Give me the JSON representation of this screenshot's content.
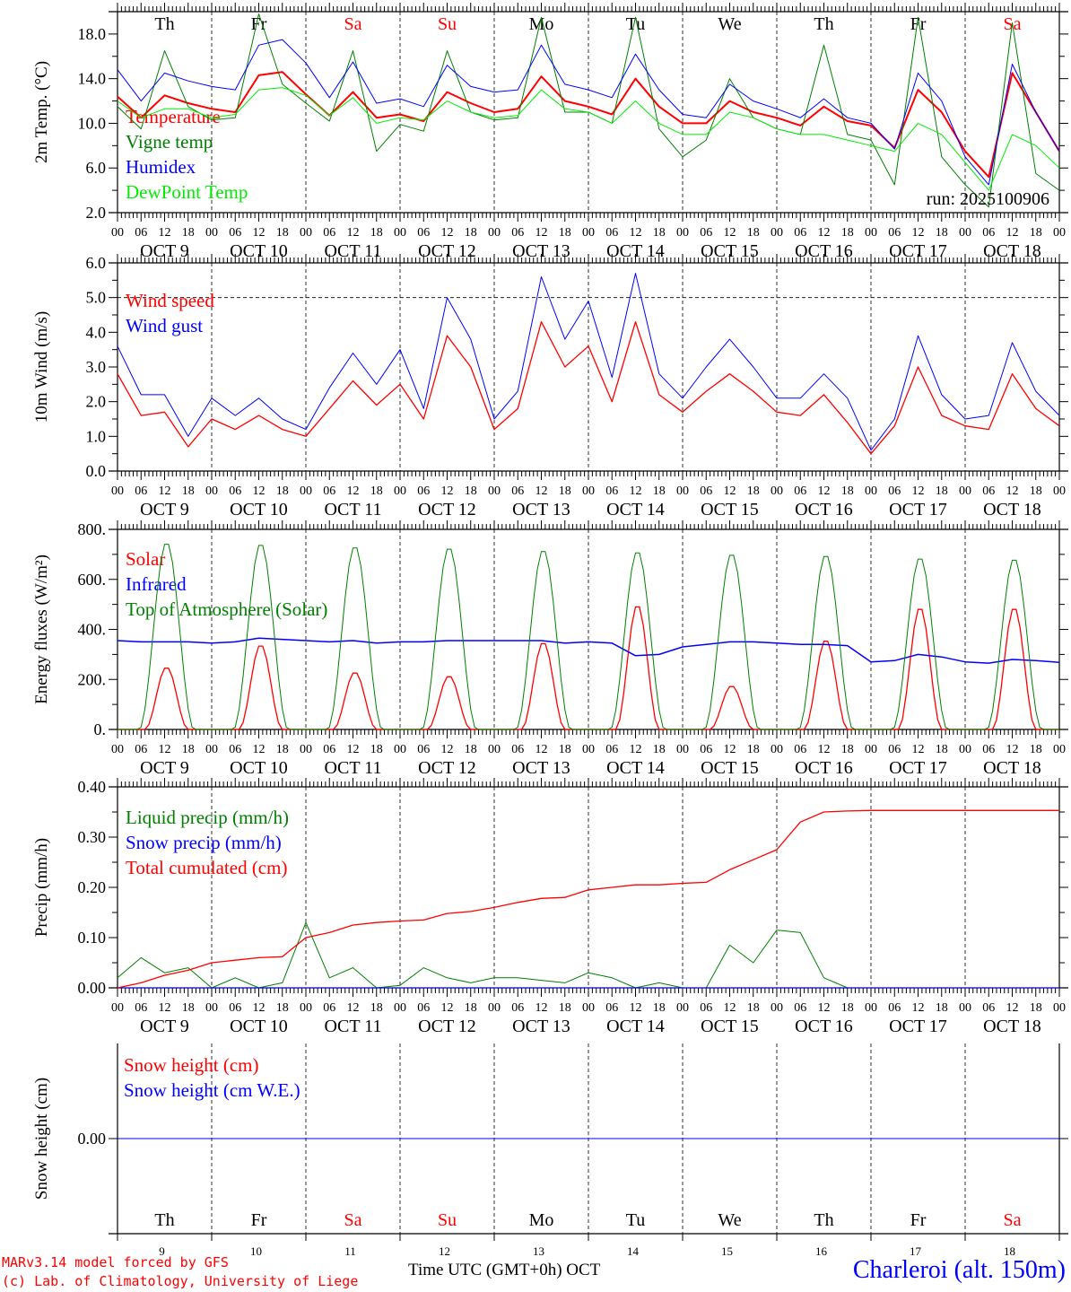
{
  "chart_data": [
    {
      "type": "line",
      "id": "temperature",
      "ylabel": "2m Temp. (°C)",
      "ylim": [
        2,
        20
      ],
      "yticks": [
        2,
        6,
        10,
        14,
        18
      ],
      "ytick_labels": [
        "2.0",
        "6.0",
        "10.0",
        "14.0",
        "18.0"
      ],
      "legend_placement": "left",
      "annotation": "run: 2025100906",
      "series": [
        {
          "name": "Temperature",
          "color": "#ff0000",
          "width": 2,
          "values": [
            12.4,
            10.5,
            12.5,
            11.8,
            11.3,
            11.0,
            14.3,
            14.6,
            12.6,
            10.7,
            12.8,
            10.5,
            10.8,
            10.2,
            12.8,
            11.8,
            11.0,
            11.3,
            14.2,
            12.0,
            11.5,
            10.8,
            14.0,
            11.5,
            10.0,
            10.0,
            12.0,
            11.0,
            10.5,
            9.8,
            11.5,
            10.2,
            9.8,
            7.8,
            13.0,
            11.0,
            7.5,
            5.2,
            14.5,
            11.0,
            7.5
          ]
        },
        {
          "name": "Vigne temp",
          "color": "#008000",
          "width": 1,
          "values": [
            11.5,
            9.5,
            16.5,
            11.5,
            10.3,
            10.5,
            19.8,
            13.5,
            11.8,
            10.2,
            16.5,
            7.5,
            9.9,
            9.3,
            16.5,
            11.0,
            10.3,
            10.5,
            19.5,
            11.0,
            11.0,
            10.0,
            19.5,
            9.5,
            7.0,
            8.5,
            14.0,
            10.5,
            9.5,
            9.0,
            17.0,
            9.0,
            8.5,
            4.5,
            19.5,
            7.0,
            4.5,
            2.5,
            19.0,
            5.5,
            4.0
          ]
        },
        {
          "name": "Humidex",
          "color": "#0000ff",
          "width": 1,
          "values": [
            14.8,
            12.0,
            14.5,
            13.8,
            13.3,
            13.0,
            17.0,
            17.5,
            15.4,
            12.3,
            15.5,
            11.8,
            12.2,
            11.5,
            15.2,
            13.3,
            12.8,
            13.0,
            17.0,
            13.5,
            13.0,
            12.3,
            16.2,
            13.0,
            10.8,
            10.5,
            13.5,
            12.0,
            11.3,
            10.5,
            12.2,
            10.5,
            10.0,
            7.7,
            14.5,
            12.0,
            7.0,
            4.5,
            15.3,
            11.0,
            7.5
          ]
        },
        {
          "name": "DewPoint Temp",
          "color": "#00ee00",
          "width": 1,
          "values": [
            12.0,
            10.5,
            11.3,
            11.3,
            10.5,
            10.8,
            13.0,
            13.2,
            12.5,
            10.7,
            12.3,
            10.0,
            10.5,
            10.3,
            12.0,
            11.0,
            10.5,
            10.7,
            13.0,
            11.3,
            11.0,
            10.0,
            12.0,
            10.0,
            9.0,
            9.0,
            11.0,
            10.5,
            9.5,
            9.0,
            9.0,
            8.5,
            8.0,
            7.5,
            10.0,
            9.0,
            6.5,
            4.0,
            9.0,
            8.0,
            6.0
          ]
        }
      ]
    },
    {
      "type": "line",
      "id": "wind",
      "ylabel": "10m Wind (m/s)",
      "ylim": [
        0,
        6
      ],
      "yticks": [
        0,
        1,
        2,
        3,
        4,
        5,
        6
      ],
      "ytick_labels": [
        "0.0",
        "1.0",
        "2.0",
        "3.0",
        "4.0",
        "5.0",
        "6.0"
      ],
      "reference_line": 5.0,
      "series": [
        {
          "name": "Wind speed",
          "color": "#ff0000",
          "width": 1.3,
          "values": [
            2.8,
            1.6,
            1.7,
            0.7,
            1.5,
            1.2,
            1.6,
            1.2,
            1.0,
            1.8,
            2.6,
            1.9,
            2.5,
            1.5,
            3.9,
            3.0,
            1.2,
            1.8,
            4.3,
            3.0,
            3.6,
            2.0,
            4.3,
            2.2,
            1.7,
            2.3,
            2.8,
            2.3,
            1.7,
            1.6,
            2.2,
            1.4,
            0.5,
            1.3,
            3.0,
            1.6,
            1.3,
            1.2,
            2.8,
            1.8,
            1.3
          ]
        },
        {
          "name": "Wind gust",
          "color": "#0000ff",
          "width": 1,
          "values": [
            3.6,
            2.2,
            2.2,
            1.0,
            2.1,
            1.6,
            2.1,
            1.5,
            1.2,
            2.4,
            3.4,
            2.5,
            3.5,
            1.8,
            5.0,
            3.8,
            1.5,
            2.3,
            5.6,
            3.8,
            4.9,
            2.7,
            5.7,
            2.8,
            2.1,
            3.0,
            3.8,
            3.0,
            2.1,
            2.1,
            2.8,
            2.1,
            0.6,
            1.5,
            3.9,
            2.2,
            1.5,
            1.6,
            3.7,
            2.3,
            1.6
          ]
        }
      ]
    },
    {
      "type": "line",
      "id": "energy",
      "ylabel": "Energy fluxes (W/m²)",
      "ylim": [
        0,
        800
      ],
      "yticks": [
        0,
        200,
        400,
        600,
        800
      ],
      "ytick_labels": [
        "0.",
        "200.",
        "400.",
        "600.",
        "800."
      ],
      "series": [
        {
          "name": "Solar",
          "color": "#ff0000",
          "width": 1.3,
          "daily_peaks": [
            250,
            340,
            230,
            215,
            350,
            500,
            175,
            360,
            490,
            490
          ]
        },
        {
          "name": "Infrared",
          "color": "#0000ff",
          "width": 1.5,
          "values": [
            355,
            350,
            350,
            350,
            345,
            350,
            365,
            360,
            355,
            350,
            355,
            345,
            350,
            350,
            355,
            355,
            355,
            355,
            355,
            345,
            350,
            345,
            295,
            300,
            330,
            340,
            350,
            350,
            345,
            340,
            340,
            335,
            270,
            275,
            300,
            290,
            270,
            265,
            280,
            275,
            268
          ]
        },
        {
          "name": "Top of Atmosphere (Solar)",
          "color": "#008000",
          "width": 1,
          "daily_peaks": [
            750,
            745,
            735,
            730,
            720,
            715,
            705,
            700,
            690,
            685
          ]
        }
      ]
    },
    {
      "type": "line",
      "id": "precip",
      "ylabel": "Precip (mm/h)",
      "ylim": [
        0,
        0.4
      ],
      "yticks": [
        0,
        0.1,
        0.2,
        0.3,
        0.4
      ],
      "ytick_labels": [
        "0.00",
        "0.10",
        "0.20",
        "0.30",
        "0.40"
      ],
      "series": [
        {
          "name": "Liquid precip (mm/h)",
          "color": "#008000",
          "width": 1,
          "values": [
            0.02,
            0.06,
            0.03,
            0.04,
            0,
            0.02,
            0,
            0.01,
            0.13,
            0.02,
            0.04,
            0,
            0.005,
            0.04,
            0.02,
            0.01,
            0.02,
            0.02,
            0.015,
            0.01,
            0.03,
            0.02,
            0,
            0.01,
            0,
            0,
            0.085,
            0.05,
            0.115,
            0.11,
            0.02,
            0,
            0,
            0,
            0,
            0,
            0,
            0,
            0,
            0,
            0
          ]
        },
        {
          "name": "Snow precip (mm/h)",
          "color": "#0000ff",
          "width": 1,
          "values": [
            0,
            0,
            0,
            0,
            0,
            0,
            0,
            0,
            0,
            0,
            0,
            0,
            0,
            0,
            0,
            0,
            0,
            0,
            0,
            0,
            0,
            0,
            0,
            0,
            0,
            0,
            0,
            0,
            0,
            0,
            0,
            0,
            0,
            0,
            0,
            0,
            0,
            0,
            0,
            0,
            0
          ]
        },
        {
          "name": "Total cumulated (cm)",
          "color": "#ff0000",
          "width": 1.3,
          "values": [
            0,
            0.01,
            0.025,
            0.035,
            0.05,
            0.055,
            0.06,
            0.062,
            0.1,
            0.11,
            0.125,
            0.13,
            0.133,
            0.135,
            0.148,
            0.152,
            0.16,
            0.17,
            0.178,
            0.18,
            0.195,
            0.2,
            0.205,
            0.205,
            0.208,
            0.21,
            0.235,
            0.255,
            0.275,
            0.33,
            0.35,
            0.352,
            0.353,
            0.353,
            0.353,
            0.353,
            0.353,
            0.353,
            0.353,
            0.353,
            0.353
          ]
        }
      ]
    },
    {
      "type": "line",
      "id": "snow",
      "ylabel": "Snow height (cm)",
      "ylim": [
        -1,
        1
      ],
      "yticks": [
        0
      ],
      "ytick_labels": [
        "0.00"
      ],
      "series": [
        {
          "name": "Snow height (cm)",
          "color": "#ff0000",
          "width": 1,
          "values": [
            0,
            0,
            0,
            0,
            0,
            0,
            0,
            0,
            0,
            0,
            0,
            0,
            0,
            0,
            0,
            0,
            0,
            0,
            0,
            0,
            0,
            0,
            0,
            0,
            0,
            0,
            0,
            0,
            0,
            0,
            0,
            0,
            0,
            0,
            0,
            0,
            0,
            0,
            0,
            0,
            0
          ]
        },
        {
          "name": "Snow height (cm W.E.)",
          "color": "#0000ff",
          "width": 1,
          "values": [
            0,
            0,
            0,
            0,
            0,
            0,
            0,
            0,
            0,
            0,
            0,
            0,
            0,
            0,
            0,
            0,
            0,
            0,
            0,
            0,
            0,
            0,
            0,
            0,
            0,
            0,
            0,
            0,
            0,
            0,
            0,
            0,
            0,
            0,
            0,
            0,
            0,
            0,
            0,
            0,
            0
          ]
        }
      ]
    }
  ],
  "x_axis": {
    "step_hours": 6,
    "hour_labels": [
      "00",
      "06",
      "12",
      "18"
    ],
    "days": [
      {
        "weekday": "Th",
        "date": "OCT  9",
        "num": "9",
        "weekend": false
      },
      {
        "weekday": "Fr",
        "date": "OCT 10",
        "num": "10",
        "weekend": false
      },
      {
        "weekday": "Sa",
        "date": "OCT 11",
        "num": "11",
        "weekend": true
      },
      {
        "weekday": "Su",
        "date": "OCT 12",
        "num": "12",
        "weekend": true
      },
      {
        "weekday": "Mo",
        "date": "OCT 13",
        "num": "13",
        "weekend": false
      },
      {
        "weekday": "Tu",
        "date": "OCT 14",
        "num": "14",
        "weekend": false
      },
      {
        "weekday": "We",
        "date": "OCT 15",
        "num": "15",
        "weekend": false
      },
      {
        "weekday": "Th",
        "date": "OCT 16",
        "num": "16",
        "weekend": false
      },
      {
        "weekday": "Fr",
        "date": "OCT 17",
        "num": "17",
        "weekend": false
      },
      {
        "weekday": "Sa",
        "date": "OCT 18",
        "num": "18",
        "weekend": true
      }
    ],
    "xlabel": "Time UTC (GMT+0h)",
    "month": "OCT"
  },
  "footer": {
    "model": "MARv3.14 model forced by GFS",
    "credit": "(c) Lab. of Climatology, University of Liege",
    "location": "Charleroi (alt. 150m)"
  },
  "colors": {
    "weekend": "#ff0000",
    "weekday": "#000000",
    "credit": "#ff0000",
    "location": "#0000ff"
  }
}
